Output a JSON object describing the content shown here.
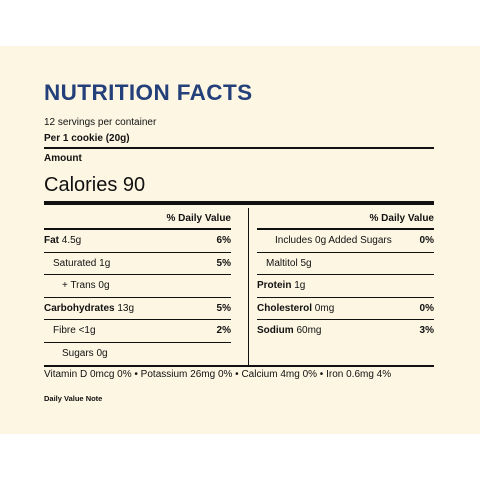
{
  "title": "NUTRITION FACTS",
  "servings_per_container": "12 servings per container",
  "serving_size": "Per 1 cookie (20g)",
  "amount_label": "Amount",
  "calories": "Calories 90",
  "dv_header": "% Daily Value",
  "left": [
    {
      "name": "Fat",
      "amount": "4.5g",
      "bold": true,
      "pct": "6%"
    },
    {
      "name": "Saturated",
      "amount": "1g",
      "bold": false,
      "pct": "5%"
    },
    {
      "name": "+ Trans",
      "amount": "0g",
      "bold": false,
      "pct": ""
    },
    {
      "name": "Carbohydrates",
      "amount": "13g",
      "bold": true,
      "pct": "5%"
    },
    {
      "name": "Fibre",
      "amount": "<1g",
      "bold": false,
      "pct": "2%"
    },
    {
      "name": "Sugars",
      "amount": "0g",
      "bold": false,
      "pct": ""
    }
  ],
  "right": [
    {
      "name": "Includes 0g Added Sugars",
      "amount": "",
      "bold": false,
      "pct": "0%"
    },
    {
      "name": "Maltitol",
      "amount": "5g",
      "bold": false,
      "pct": ""
    },
    {
      "name": "Protein",
      "amount": "1g",
      "bold": true,
      "pct": ""
    },
    {
      "name": "Cholesterol",
      "amount": "0mg",
      "bold": true,
      "pct": "0%"
    },
    {
      "name": "Sodium",
      "amount": "60mg",
      "bold": true,
      "pct": "3%"
    }
  ],
  "vitamins": "Vitamin D 0mcg 0% • Potassium 26mg 0% • Calcium 4mg 0% • Iron 0.6mg 4%",
  "note": "Daily Value Note"
}
